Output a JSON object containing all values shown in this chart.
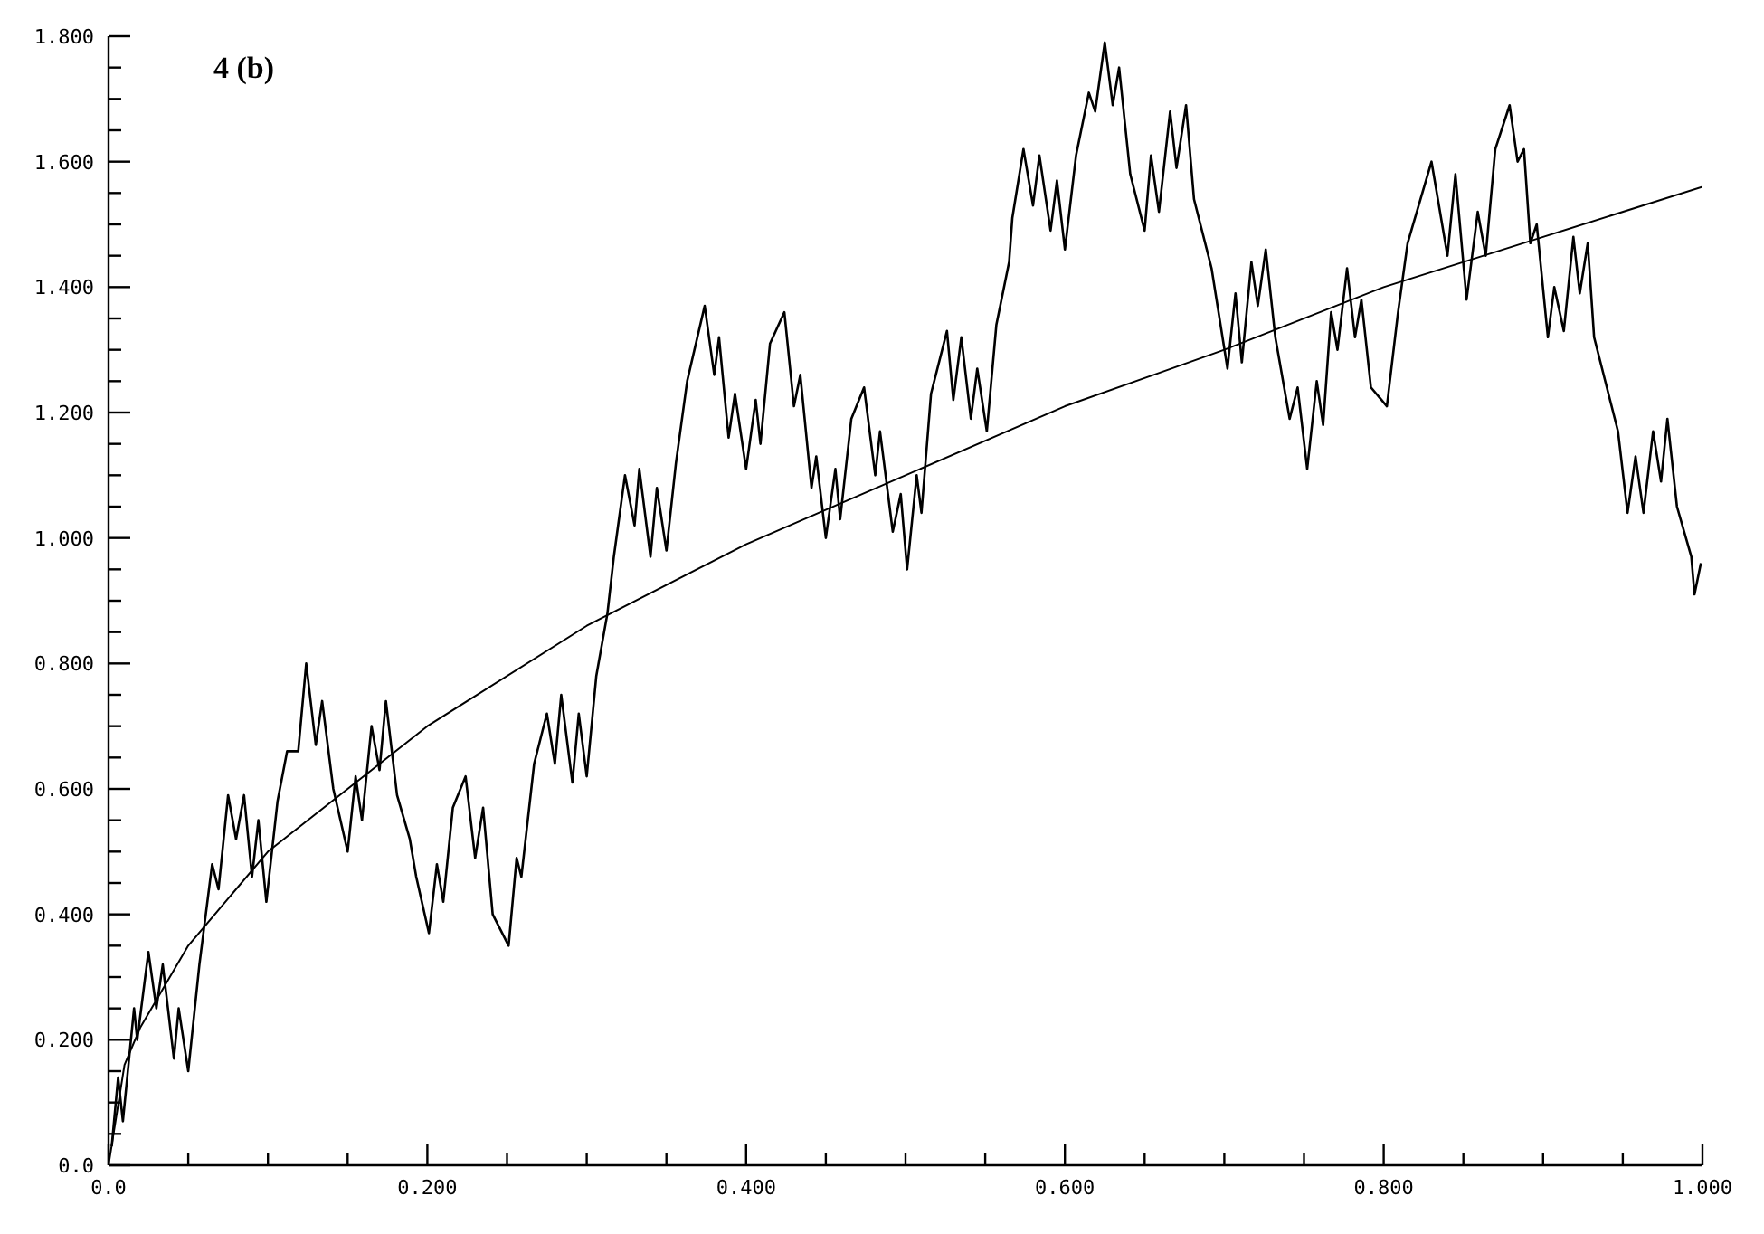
{
  "chart_data": {
    "type": "line",
    "annotations": [
      "4 (b)"
    ],
    "xlim": [
      0,
      1
    ],
    "ylim": [
      0,
      1.8
    ],
    "xticks": [
      {
        "value": 0,
        "label": "0.0"
      },
      {
        "value": 0.05,
        "label": null
      },
      {
        "value": 0.1,
        "label": null
      },
      {
        "value": 0.15,
        "label": null
      },
      {
        "value": 0.2,
        "label": "0.200"
      },
      {
        "value": 0.25,
        "label": null
      },
      {
        "value": 0.3,
        "label": null
      },
      {
        "value": 0.35,
        "label": null
      },
      {
        "value": 0.4,
        "label": "0.400"
      },
      {
        "value": 0.45,
        "label": null
      },
      {
        "value": 0.5,
        "label": null
      },
      {
        "value": 0.55,
        "label": null
      },
      {
        "value": 0.6,
        "label": "0.600"
      },
      {
        "value": 0.65,
        "label": null
      },
      {
        "value": 0.7,
        "label": null
      },
      {
        "value": 0.75,
        "label": null
      },
      {
        "value": 0.8,
        "label": "0.800"
      },
      {
        "value": 0.85,
        "label": null
      },
      {
        "value": 0.9,
        "label": null
      },
      {
        "value": 0.95,
        "label": null
      },
      {
        "value": 1,
        "label": "1.000"
      }
    ],
    "yticks": [
      {
        "value": 0,
        "label": "0.0"
      },
      {
        "value": 0.05,
        "label": null
      },
      {
        "value": 0.1,
        "label": null
      },
      {
        "value": 0.15,
        "label": null
      },
      {
        "value": 0.2,
        "label": "0.200"
      },
      {
        "value": 0.25,
        "label": null
      },
      {
        "value": 0.3,
        "label": null
      },
      {
        "value": 0.35,
        "label": null
      },
      {
        "value": 0.4,
        "label": "0.400"
      },
      {
        "value": 0.45,
        "label": null
      },
      {
        "value": 0.5,
        "label": null
      },
      {
        "value": 0.55,
        "label": null
      },
      {
        "value": 0.6,
        "label": "0.600"
      },
      {
        "value": 0.65,
        "label": null
      },
      {
        "value": 0.7,
        "label": null
      },
      {
        "value": 0.75,
        "label": null
      },
      {
        "value": 0.8,
        "label": "0.800"
      },
      {
        "value": 0.85,
        "label": null
      },
      {
        "value": 0.9,
        "label": null
      },
      {
        "value": 0.95,
        "label": null
      },
      {
        "value": 1,
        "label": "1.000"
      },
      {
        "value": 1.05,
        "label": null
      },
      {
        "value": 1.1,
        "label": null
      },
      {
        "value": 1.15,
        "label": null
      },
      {
        "value": 1.2,
        "label": "1.200"
      },
      {
        "value": 1.25,
        "label": null
      },
      {
        "value": 1.3,
        "label": null
      },
      {
        "value": 1.35,
        "label": null
      },
      {
        "value": 1.4,
        "label": "1.400"
      },
      {
        "value": 1.45,
        "label": null
      },
      {
        "value": 1.5,
        "label": null
      },
      {
        "value": 1.55,
        "label": null
      },
      {
        "value": 1.6,
        "label": "1.600"
      },
      {
        "value": 1.65,
        "label": null
      },
      {
        "value": 1.7,
        "label": null
      },
      {
        "value": 1.75,
        "label": null
      },
      {
        "value": 1.8,
        "label": "1.800"
      }
    ],
    "series": [
      {
        "color": "#000000",
        "x": [
          0.002,
          0.006,
          0.009,
          0.016,
          0.018,
          0.025,
          0.03,
          0.034,
          0.041,
          0.044,
          0.05,
          0.057,
          0.065,
          0.069,
          0.075,
          0.08,
          0.085,
          0.09,
          0.094,
          0.099,
          0.106,
          0.112,
          0.119,
          0.124,
          0.13,
          0.134,
          0.141,
          0.15,
          0.155,
          0.159,
          0.165,
          0.17,
          0.174,
          0.181,
          0.189,
          0.193,
          0.201,
          0.206,
          0.21,
          0.216,
          0.224,
          0.23,
          0.235,
          0.241,
          0.251,
          0.256,
          0.259,
          0.267,
          0.275,
          0.28,
          0.284,
          0.291,
          0.295,
          0.3,
          0.306,
          0.313,
          0.317,
          0.324,
          0.33,
          0.333,
          0.34,
          0.344,
          0.35,
          0.356,
          0.363,
          0.374,
          0.38,
          0.383,
          0.389,
          0.393,
          0.4,
          0.406,
          0.409,
          0.415,
          0.424,
          0.43,
          0.434,
          0.441,
          0.444,
          0.45,
          0.456,
          0.459,
          0.466,
          0.474,
          0.481,
          0.484,
          0.492,
          0.497,
          0.501,
          0.507,
          0.51,
          0.516,
          0.526,
          0.53,
          0.535,
          0.541,
          0.545,
          0.551,
          0.557,
          0.565,
          0.567,
          0.574,
          0.58,
          0.584,
          0.591,
          0.595,
          0.6,
          0.607,
          0.615,
          0.619,
          0.625,
          0.63,
          0.634,
          0.641,
          0.65,
          0.654,
          0.659,
          0.666,
          0.67,
          0.676,
          0.681,
          0.692,
          0.702,
          0.707,
          0.711,
          0.717,
          0.721,
          0.726,
          0.732,
          0.741,
          0.746,
          0.752,
          0.758,
          0.762,
          0.767,
          0.771,
          0.777,
          0.782,
          0.786,
          0.792,
          0.802,
          0.809,
          0.815,
          0.83,
          0.84,
          0.845,
          0.852,
          0.859,
          0.864,
          0.87,
          0.879,
          0.884,
          0.888,
          0.892,
          0.896,
          0.903,
          0.907,
          0.913,
          0.919,
          0.923,
          0.928,
          0.932,
          0.941,
          0.947,
          0.953,
          0.958,
          0.963,
          0.969,
          0.974,
          0.978,
          0.984,
          0.993,
          0.995,
          0.999
        ],
        "values": [
          0.03,
          0.14,
          0.07,
          0.25,
          0.2,
          0.34,
          0.25,
          0.32,
          0.17,
          0.25,
          0.15,
          0.32,
          0.48,
          0.44,
          0.59,
          0.52,
          0.59,
          0.46,
          0.55,
          0.42,
          0.58,
          0.66,
          0.66,
          0.8,
          0.67,
          0.74,
          0.6,
          0.5,
          0.62,
          0.55,
          0.7,
          0.63,
          0.74,
          0.59,
          0.52,
          0.46,
          0.37,
          0.48,
          0.42,
          0.57,
          0.62,
          0.49,
          0.57,
          0.4,
          0.35,
          0.49,
          0.46,
          0.64,
          0.72,
          0.64,
          0.75,
          0.61,
          0.72,
          0.62,
          0.78,
          0.88,
          0.97,
          1.1,
          1.02,
          1.11,
          0.97,
          1.08,
          0.98,
          1.12,
          1.25,
          1.37,
          1.26,
          1.32,
          1.16,
          1.23,
          1.11,
          1.22,
          1.15,
          1.31,
          1.36,
          1.21,
          1.26,
          1.08,
          1.13,
          1.0,
          1.11,
          1.03,
          1.19,
          1.24,
          1.1,
          1.17,
          1.01,
          1.07,
          0.95,
          1.1,
          1.04,
          1.23,
          1.33,
          1.22,
          1.32,
          1.19,
          1.27,
          1.17,
          1.34,
          1.44,
          1.51,
          1.62,
          1.53,
          1.61,
          1.49,
          1.57,
          1.46,
          1.61,
          1.71,
          1.68,
          1.79,
          1.69,
          1.75,
          1.58,
          1.49,
          1.61,
          1.52,
          1.68,
          1.59,
          1.69,
          1.54,
          1.43,
          1.27,
          1.39,
          1.28,
          1.44,
          1.37,
          1.46,
          1.32,
          1.19,
          1.24,
          1.11,
          1.25,
          1.18,
          1.36,
          1.3,
          1.43,
          1.32,
          1.38,
          1.24,
          1.21,
          1.36,
          1.47,
          1.6,
          1.45,
          1.58,
          1.38,
          1.52,
          1.45,
          1.62,
          1.69,
          1.6,
          1.62,
          1.47,
          1.5,
          1.32,
          1.4,
          1.33,
          1.48,
          1.39,
          1.47,
          1.32,
          1.23,
          1.17,
          1.04,
          1.13,
          1.04,
          1.17,
          1.09,
          1.19,
          1.05,
          0.97,
          0.91,
          0.96
        ]
      },
      {
        "color": "#000000",
        "x": [
          0,
          0.01,
          0.02,
          0.05,
          0.1,
          0.15,
          0.2,
          0.3,
          0.4,
          0.5,
          0.6,
          0.7,
          0.8,
          0.9,
          1.0
        ],
        "values": [
          0,
          0.16,
          0.22,
          0.35,
          0.5,
          0.6,
          0.7,
          0.86,
          0.99,
          1.1,
          1.21,
          1.3,
          1.4,
          1.48,
          1.56
        ]
      }
    ]
  }
}
